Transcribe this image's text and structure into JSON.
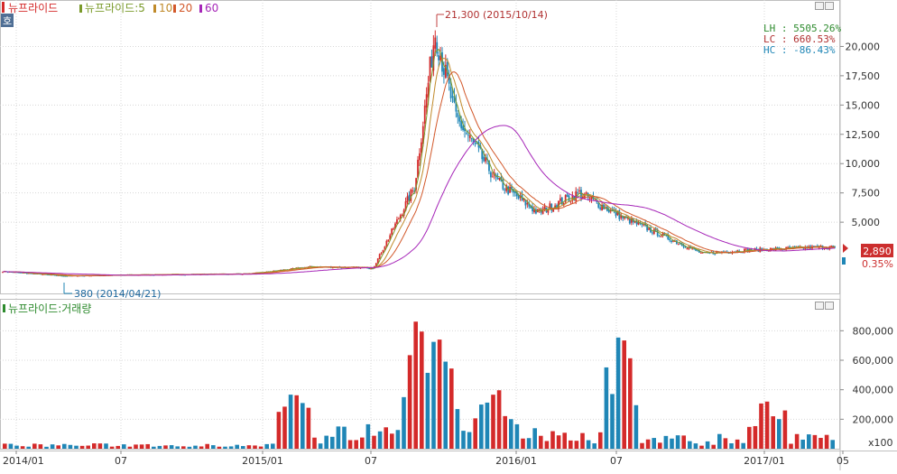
{
  "colors": {
    "up": "#d42a2a",
    "down": "#1f86b6",
    "ma5": "#7a9a2a",
    "ma10": "#c08a2a",
    "ma20": "#d2582a",
    "ma60": "#a626b8",
    "badge_bg": "#cc2e2e",
    "axis_text": "#333333",
    "grid": "#d8d8d8"
  },
  "price_panel": {
    "hoga_badge": "호",
    "legend": {
      "series_name": "뉴프라이드",
      "ma_prefix": "뉴프라이드:5",
      "ma10": "10",
      "ma20": "20",
      "ma60": "60"
    },
    "high_annotation": "21,300 (2015/10/14)",
    "low_annotation": "380 (2014/04/21)",
    "info": {
      "lh": "LH : 5505.26%",
      "lc": "LC :  660.53%",
      "hc": "HC :  -86.43%"
    },
    "current_price": "2,890",
    "change_pct": "0.35%"
  },
  "volume_panel": {
    "legend": "뉴프라이드:거래량",
    "unit": "x100"
  },
  "chart_data": [
    {
      "type": "candlestick",
      "series": [
        {
          "name": "뉴프라이드"
        },
        {
          "name": "5"
        },
        {
          "name": "10"
        },
        {
          "name": "20"
        },
        {
          "name": "60"
        }
      ],
      "x_ticks": [
        "2014/01",
        "07",
        "2015/01",
        "07",
        "2016/01",
        "07",
        "2017/01",
        "05"
      ],
      "y_ticks": [
        "20,000",
        "17,500",
        "15,000",
        "12,500",
        "10,000",
        "7,500",
        "5,000"
      ],
      "ylim": [
        0,
        22500
      ],
      "approx_close_path": [
        {
          "x": "2014/01",
          "y": 800
        },
        {
          "x": "2014/04",
          "y": 420
        },
        {
          "x": "2014/07",
          "y": 500
        },
        {
          "x": "2015/01",
          "y": 600
        },
        {
          "x": "2015/04",
          "y": 1200
        },
        {
          "x": "2015/07",
          "y": 1100
        },
        {
          "x": "2015/09",
          "y": 8000
        },
        {
          "x": "2015/10",
          "y": 21300
        },
        {
          "x": "2015/11",
          "y": 14000
        },
        {
          "x": "2016/01",
          "y": 8500
        },
        {
          "x": "2016/03",
          "y": 5800
        },
        {
          "x": "2016/05",
          "y": 7500
        },
        {
          "x": "2016/07",
          "y": 5500
        },
        {
          "x": "2016/11",
          "y": 2300
        },
        {
          "x": "2017/01",
          "y": 2600
        },
        {
          "x": "2017/05",
          "y": 2890
        }
      ],
      "high": {
        "date": "2015/10/14",
        "value": 21300
      },
      "low": {
        "date": "2014/04/21",
        "value": 380
      },
      "last": 2890
    },
    {
      "type": "bar",
      "series": [
        {
          "name": "뉴프라이드:거래량"
        }
      ],
      "y_ticks": [
        "800,000",
        "600,000",
        "400,000",
        "200,000"
      ],
      "ylim": [
        0,
        900000
      ],
      "unit": "x100",
      "peaks": [
        {
          "x": "2015/03",
          "y": 420000
        },
        {
          "x": "2015/09",
          "y": 870000
        },
        {
          "x": "2015/10",
          "y": 800000
        },
        {
          "x": "2016/01",
          "y": 420000
        },
        {
          "x": "2016/07",
          "y": 820000
        },
        {
          "x": "2017/02",
          "y": 350000
        }
      ]
    }
  ]
}
